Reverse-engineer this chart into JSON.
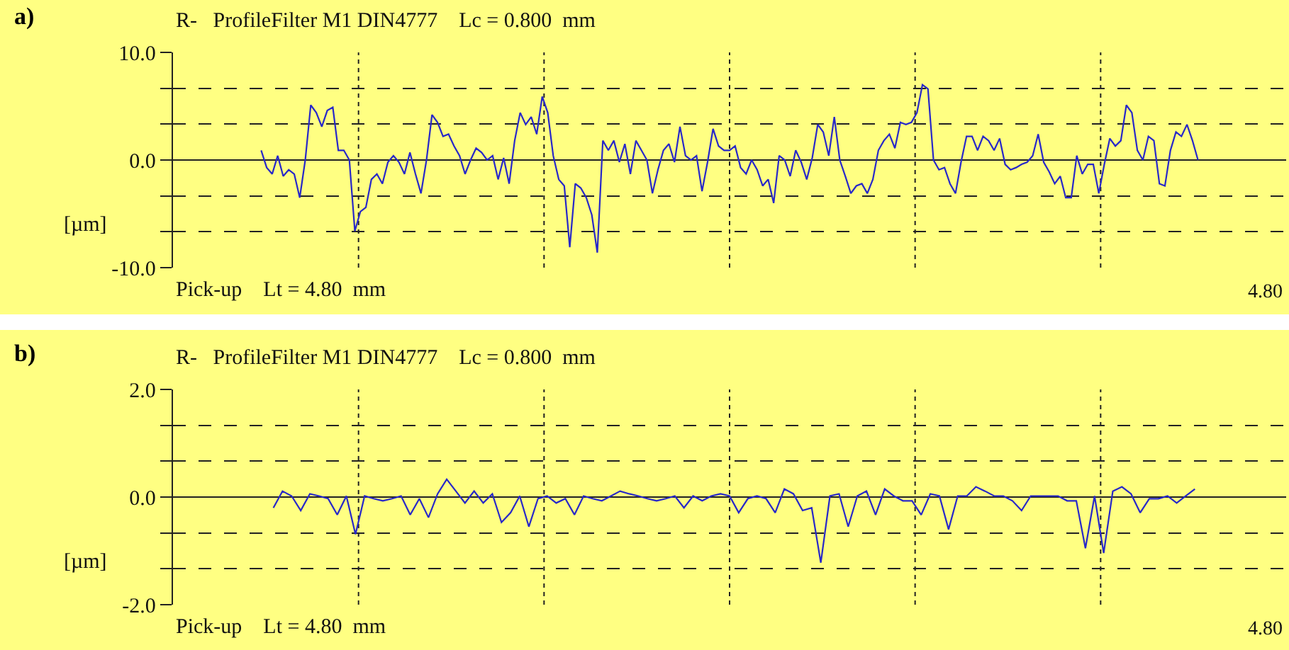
{
  "chart_data": [
    {
      "type": "line",
      "title": "R-   ProfileFilter M1 DIN4777    Lc = 0.800  mm",
      "xlabel": "Pick-up    Lt = 4.80  mm",
      "ylabel": "[µm]",
      "annotations": [
        "a)",
        "4.80"
      ],
      "grid": true,
      "ylim": [
        -10,
        10
      ],
      "yticks": [
        {
          "value": -10,
          "label": "-10.0"
        },
        {
          "value": -6.67,
          "label": null
        },
        {
          "value": -3.33,
          "label": null
        },
        {
          "value": 0,
          "label": "0.0"
        },
        {
          "value": 3.33,
          "label": null
        },
        {
          "value": 6.67,
          "label": null
        },
        {
          "value": 10,
          "label": "10.0"
        }
      ],
      "categories": [
        null,
        null,
        null,
        null,
        null,
        null,
        null,
        null,
        null,
        null,
        null,
        null,
        null,
        null,
        null,
        null,
        null,
        null,
        null,
        null,
        null,
        null,
        null,
        null,
        null,
        null,
        null,
        null,
        null,
        null,
        null,
        null,
        null,
        null,
        null,
        null,
        null,
        null,
        null,
        null,
        null,
        null,
        null,
        null,
        null,
        null,
        null,
        null,
        null,
        null,
        null,
        null,
        null,
        null,
        null,
        null,
        null,
        null,
        null,
        null,
        null,
        null,
        null,
        null,
        null,
        null,
        null,
        null,
        null,
        null,
        null,
        null,
        null,
        null,
        null,
        null,
        null,
        null,
        null,
        null,
        null,
        null,
        null,
        null,
        null,
        null,
        null,
        null,
        null,
        null,
        null,
        null,
        null,
        null,
        null,
        null,
        null,
        null,
        null,
        null,
        null,
        null,
        null,
        null,
        null,
        null,
        null,
        null,
        null,
        null,
        null,
        null,
        null,
        null,
        null,
        null,
        null,
        null,
        null,
        null,
        null,
        null,
        null,
        null,
        null,
        null,
        null,
        null,
        null,
        null,
        null,
        null,
        null,
        null,
        null,
        null,
        null,
        null,
        null,
        null,
        null,
        null,
        null,
        null,
        null,
        null,
        null,
        null,
        null,
        null,
        null,
        null,
        null,
        null,
        null,
        null,
        null,
        null,
        null,
        null,
        null,
        null,
        null,
        null,
        null,
        null,
        null,
        null,
        null,
        null,
        null,
        null,
        null,
        null,
        null,
        null,
        null,
        null,
        null,
        null,
        null,
        null,
        null,
        null,
        null,
        null,
        null,
        null,
        null,
        null,
        null,
        null,
        null,
        null,
        null,
        null,
        null,
        null,
        null,
        null,
        null,
        null,
        null
      ],
      "series": [
        {
          "color": "#2828c8",
          "values": [
            null,
            null,
            null,
            null,
            null,
            null,
            null,
            null,
            null,
            null,
            null,
            null,
            null,
            null,
            null,
            null,
            0.9,
            -0.7,
            -1.3,
            0.4,
            -1.5,
            -0.9,
            -1.3,
            -3.5,
            0.0,
            5.1,
            4.4,
            3.1,
            4.6,
            4.9,
            0.9,
            0.9,
            0.0,
            -6.6,
            -4.8,
            -4.4,
            -1.8,
            -1.3,
            -2.2,
            -0.2,
            0.4,
            -0.2,
            -1.3,
            0.7,
            -1.3,
            -3.1,
            0.0,
            4.2,
            3.5,
            2.2,
            2.4,
            1.3,
            0.4,
            -1.3,
            0.0,
            1.1,
            0.7,
            0.0,
            0.4,
            -1.8,
            0.2,
            -2.2,
            1.8,
            4.4,
            3.3,
            4.0,
            2.4,
            5.9,
            4.4,
            0.4,
            -1.8,
            -2.4,
            -8.1,
            -2.2,
            -2.6,
            -3.5,
            -5.1,
            -8.6,
            1.8,
            0.9,
            1.8,
            -0.2,
            1.5,
            -1.3,
            1.8,
            0.9,
            0.0,
            -3.1,
            -0.9,
            0.9,
            1.5,
            -0.2,
            3.1,
            0.4,
            0.0,
            0.4,
            -2.9,
            -0.2,
            2.9,
            1.3,
            0.9,
            0.9,
            1.3,
            -0.7,
            -1.3,
            0.0,
            -0.9,
            -2.4,
            -1.8,
            -4.0,
            0.4,
            0.0,
            -1.5,
            0.9,
            -0.2,
            -1.8,
            0.2,
            3.3,
            2.6,
            0.4,
            4.0,
            0.0,
            -1.5,
            -3.1,
            -2.4,
            -2.2,
            -3.1,
            -1.8,
            0.9,
            1.8,
            2.4,
            1.1,
            3.5,
            3.3,
            3.5,
            4.4,
            7.0,
            6.6,
            0.0,
            -0.9,
            -0.7,
            -2.2,
            -3.1,
            -0.2,
            2.2,
            2.2,
            0.9,
            2.2,
            1.8,
            0.9,
            2.0,
            -0.4,
            -0.9,
            -0.7,
            -0.4,
            -0.2,
            0.4,
            2.4,
            -0.2,
            -1.1,
            -2.2,
            -1.5,
            -3.5,
            -3.5,
            0.4,
            -1.3,
            -0.4,
            -0.4,
            -3.1,
            -0.4,
            2.0,
            1.3,
            1.8,
            5.1,
            4.4,
            0.9,
            0.0,
            2.2,
            1.8,
            -2.2,
            -2.4,
            0.9,
            2.6,
            2.2,
            3.3,
            1.8,
            0.0,
            null,
            null,
            null,
            null,
            null,
            null,
            null,
            null,
            null,
            null,
            null,
            null,
            null,
            null,
            null,
            null
          ]
        }
      ]
    },
    {
      "type": "line",
      "title": "R-   ProfileFilter M1 DIN4777    Lc = 0.800  mm",
      "xlabel": "Pick-up    Lt = 4.80  mm",
      "ylabel": "[µm]",
      "annotations": [
        "b)",
        "4.80"
      ],
      "grid": true,
      "ylim": [
        -2,
        2
      ],
      "yticks": [
        {
          "value": -2,
          "label": "-2.0"
        },
        {
          "value": -1.33,
          "label": null
        },
        {
          "value": -0.67,
          "label": null
        },
        {
          "value": 0,
          "label": "0.0"
        },
        {
          "value": 0.67,
          "label": null
        },
        {
          "value": 1.33,
          "label": null
        },
        {
          "value": 2,
          "label": "2.0"
        }
      ],
      "categories": [
        null,
        null,
        null,
        null,
        null,
        null,
        null,
        null,
        null,
        null,
        null,
        null,
        null,
        null,
        null,
        null,
        null,
        null,
        null,
        null,
        null,
        null,
        null,
        null,
        null,
        null,
        null,
        null,
        null,
        null,
        null,
        null,
        null,
        null,
        null,
        null,
        null,
        null,
        null,
        null,
        null,
        null,
        null,
        null,
        null,
        null,
        null,
        null,
        null,
        null,
        null,
        null,
        null,
        null,
        null,
        null,
        null,
        null,
        null,
        null,
        null,
        null,
        null,
        null,
        null,
        null,
        null,
        null,
        null,
        null,
        null,
        null,
        null,
        null,
        null,
        null,
        null,
        null,
        null,
        null,
        null,
        null,
        null,
        null,
        null,
        null,
        null,
        null,
        null,
        null,
        null,
        null,
        null,
        null,
        null,
        null,
        null,
        null,
        null,
        null,
        null,
        null,
        null,
        null,
        null,
        null,
        null,
        null,
        null,
        null,
        null,
        null,
        null,
        null,
        null,
        null,
        null,
        null,
        null,
        null,
        null,
        null,
        null
      ],
      "series": [
        {
          "color": "#2828c8",
          "values": [
            null,
            null,
            null,
            null,
            null,
            null,
            null,
            null,
            null,
            null,
            null,
            -0.2,
            0.11,
            0.02,
            -0.25,
            0.06,
            0.02,
            -0.03,
            -0.33,
            0.02,
            -0.69,
            0.02,
            -0.03,
            -0.07,
            -0.03,
            0.02,
            -0.33,
            -0.03,
            -0.38,
            0.06,
            0.33,
            0.11,
            -0.11,
            0.11,
            -0.11,
            0.06,
            -0.47,
            -0.29,
            0.02,
            -0.55,
            -0.03,
            0.02,
            -0.11,
            -0.03,
            -0.33,
            0.02,
            -0.03,
            -0.07,
            0.02,
            0.11,
            0.06,
            0.02,
            -0.03,
            -0.07,
            -0.03,
            0.02,
            -0.2,
            0.02,
            -0.07,
            0.02,
            0.06,
            0.02,
            -0.29,
            -0.03,
            0.02,
            -0.03,
            -0.29,
            0.15,
            0.06,
            -0.25,
            -0.2,
            -1.22,
            0.02,
            0.06,
            -0.55,
            0.02,
            0.11,
            -0.33,
            0.15,
            0.02,
            -0.07,
            -0.07,
            -0.33,
            0.06,
            0.02,
            -0.6,
            0.02,
            0.02,
            0.19,
            0.11,
            0.02,
            0.02,
            -0.07,
            -0.25,
            0.02,
            0.02,
            0.02,
            0.02,
            -0.07,
            -0.07,
            -0.95,
            0.02,
            -1.04,
            0.11,
            0.19,
            0.06,
            -0.29,
            -0.03,
            -0.03,
            0.02,
            -0.11,
            0.02,
            0.15,
            null,
            null,
            null,
            null,
            null,
            null,
            null,
            null,
            null,
            null
          ]
        }
      ]
    }
  ]
}
